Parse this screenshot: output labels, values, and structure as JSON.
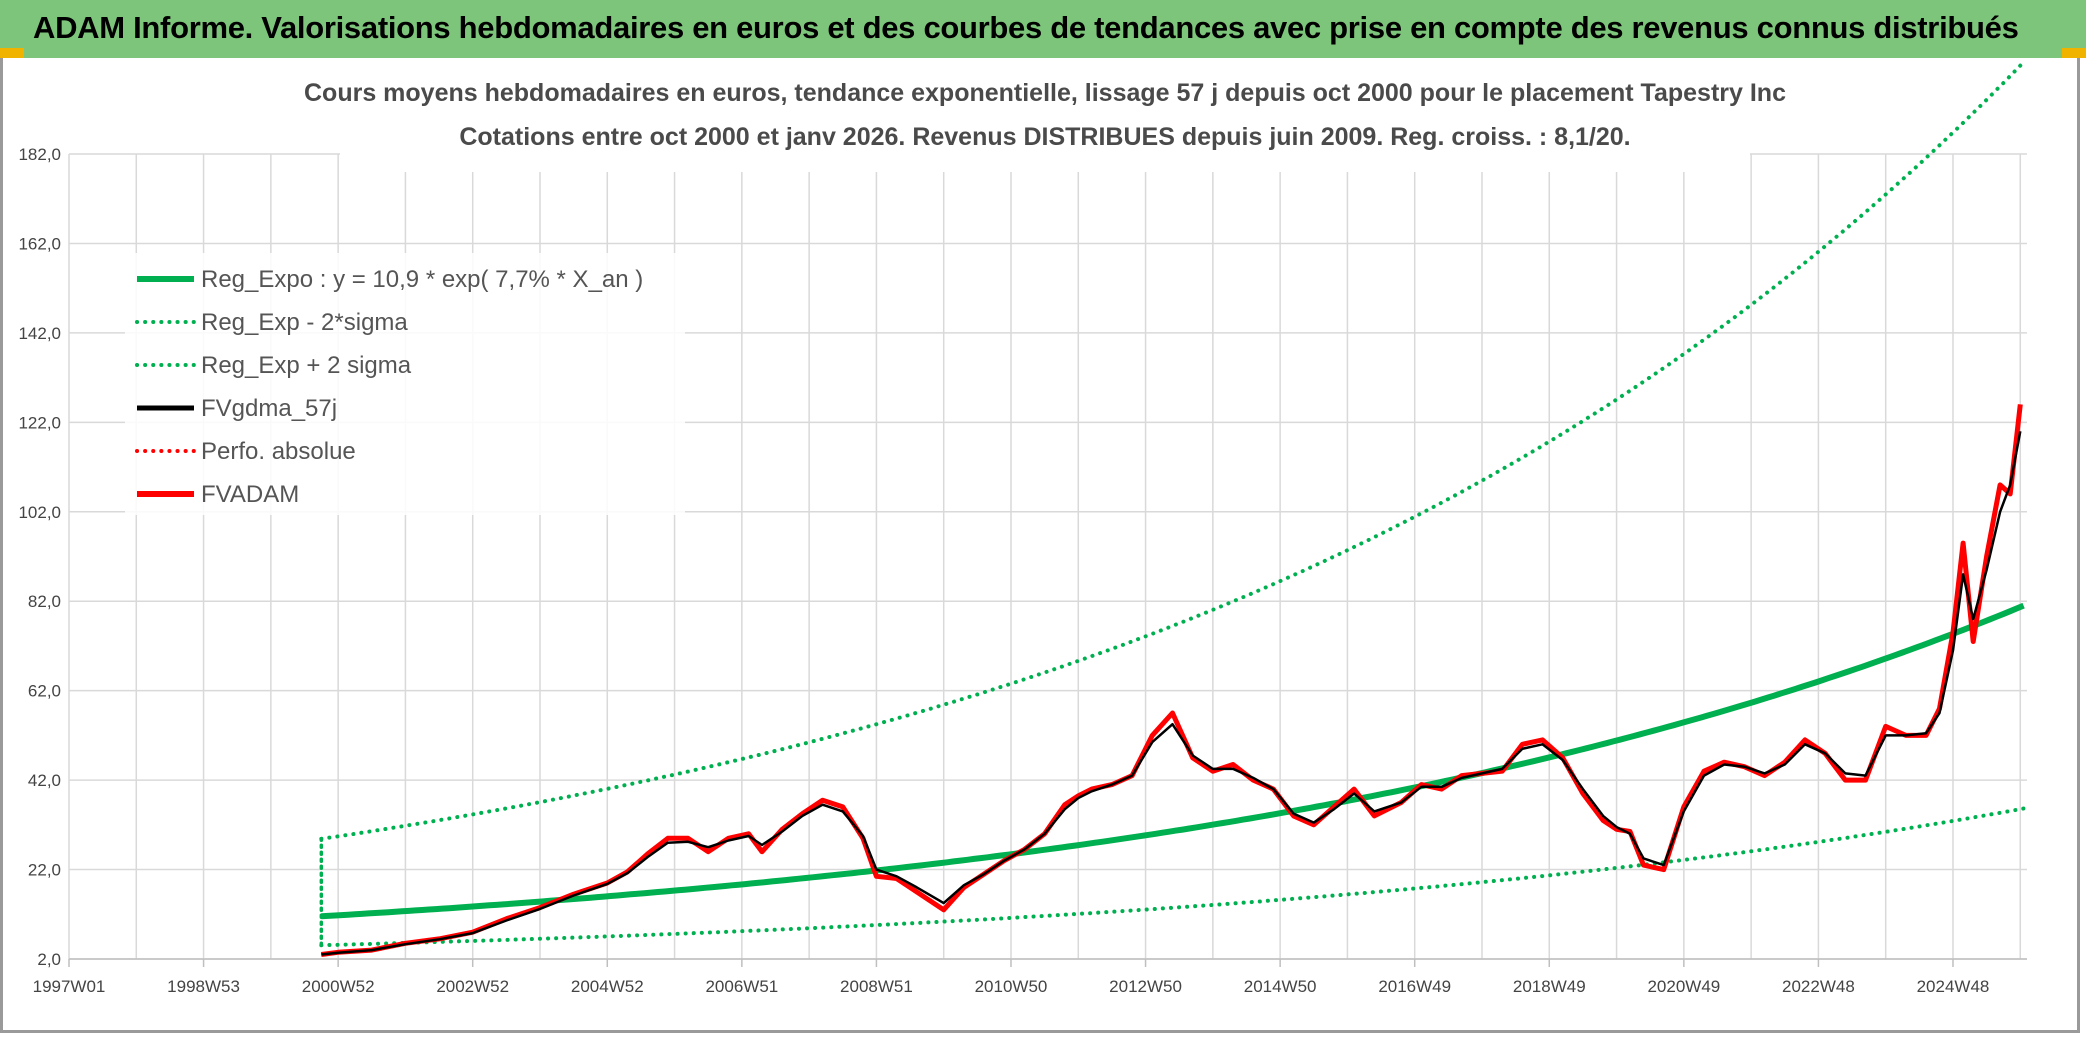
{
  "banner": {
    "title": "ADAM Informe. Valorisations hebdomadaires en euros et des courbes de tendances avec prise en compte des revenus connus distribués"
  },
  "colors": {
    "banner_bg": "#7dc57b",
    "trend_green": "#00b050",
    "red": "#ff0000",
    "black": "#000000",
    "grid": "#d9d9d9"
  },
  "chart_data": {
    "type": "line",
    "title": "Cours moyens hebdomadaires en euros, tendance exponentielle, lissage 57 j depuis oct 2000 pour le placement Tapestry Inc",
    "subtitle": "Cotations entre oct 2000 et janv 2026. Revenus DISTRIBUES depuis juin 2009. Reg. croiss. : 8,1/20.",
    "xlabel": "",
    "ylabel": "",
    "ylim": [
      2.0,
      182.0
    ],
    "xlim": [
      1997.0,
      2026.1
    ],
    "y_ticks": [
      "2,0",
      "22,0",
      "42,0",
      "62,0",
      "82,0",
      "102,0",
      "122,0",
      "142,0",
      "162,0",
      "182,0"
    ],
    "x_ticks": [
      "1997W01",
      "1998W53",
      "2000W52",
      "2002W52",
      "2004W52",
      "2006W51",
      "2008W51",
      "2010W50",
      "2012W50",
      "2014W50",
      "2016W49",
      "2018W49",
      "2020W49",
      "2022W48",
      "2024W48"
    ],
    "x_tick_years": [
      1997.0,
      1999.0,
      2001.0,
      2003.0,
      2005.0,
      2007.0,
      2009.0,
      2011.0,
      2013.0,
      2015.0,
      2017.0,
      2019.0,
      2021.0,
      2023.0,
      2025.0
    ],
    "x_minor_years": [
      1998.0,
      2000.0,
      2002.0,
      2004.0,
      2006.0,
      2008.0,
      2010.0,
      2012.0,
      2014.0,
      2016.0,
      2018.0,
      2020.0,
      2022.0,
      2024.0,
      2026.0
    ],
    "legend": [
      {
        "label": "Reg_Expo : y = 10,9 * exp( 7,7% *  X_an )",
        "color": "#00b050",
        "style": "solid-thick"
      },
      {
        "label": "Reg_Exp - 2*sigma",
        "color": "#00b050",
        "style": "dotted"
      },
      {
        "label": "Reg_Exp + 2 sigma",
        "color": "#00b050",
        "style": "dotted"
      },
      {
        "label": "FVgdma_57j",
        "color": "#000000",
        "style": "solid"
      },
      {
        "label": "Perfo. absolue",
        "color": "#ff0000",
        "style": "dotted"
      },
      {
        "label": "FVADAM",
        "color": "#ff0000",
        "style": "solid-thick"
      }
    ],
    "regression": {
      "a": 10.9,
      "b": 0.077,
      "start_year": 2000.75,
      "end_year": 2026.05,
      "minus_factor": 0.44,
      "plus_factor": 2.5
    },
    "series": [
      {
        "name": "FVADAM",
        "x": [
          2000.75,
          2001.0,
          2001.5,
          2002.0,
          2002.5,
          2003.0,
          2003.5,
          2004.0,
          2004.5,
          2005.0,
          2005.3,
          2005.6,
          2005.9,
          2006.2,
          2006.5,
          2006.8,
          2007.1,
          2007.3,
          2007.6,
          2007.9,
          2008.2,
          2008.5,
          2008.8,
          2009.0,
          2009.3,
          2009.6,
          2010.0,
          2010.3,
          2010.6,
          2010.9,
          2011.2,
          2011.5,
          2011.8,
          2012.0,
          2012.2,
          2012.5,
          2012.8,
          2013.1,
          2013.4,
          2013.7,
          2014.0,
          2014.3,
          2014.6,
          2014.9,
          2015.2,
          2015.5,
          2015.8,
          2016.1,
          2016.4,
          2016.8,
          2017.1,
          2017.4,
          2017.7,
          2018.0,
          2018.3,
          2018.6,
          2018.9,
          2019.2,
          2019.5,
          2019.8,
          2020.0,
          2020.2,
          2020.4,
          2020.7,
          2021.0,
          2021.3,
          2021.6,
          2021.9,
          2022.2,
          2022.5,
          2022.8,
          2023.1,
          2023.4,
          2023.7,
          2024.0,
          2024.3,
          2024.6,
          2024.8,
          2025.0,
          2025.15,
          2025.3,
          2025.5,
          2025.7,
          2025.85,
          2026.0
        ],
        "values": [
          3.0,
          3.5,
          4.0,
          5.5,
          6.5,
          8.0,
          11.0,
          13.5,
          16.5,
          19.0,
          21.5,
          25.5,
          29.0,
          29.0,
          26.0,
          29.0,
          30.0,
          26.0,
          31.0,
          34.5,
          37.5,
          36.0,
          29.0,
          20.5,
          20.0,
          17.0,
          13.0,
          18.0,
          21.0,
          24.0,
          26.5,
          30.0,
          36.5,
          38.5,
          40.0,
          41.0,
          43.0,
          52.0,
          57.0,
          47.0,
          44.0,
          45.5,
          42.0,
          40.0,
          34.0,
          32.0,
          36.0,
          40.0,
          34.0,
          37.0,
          41.0,
          40.0,
          43.0,
          43.5,
          44.0,
          50.0,
          51.0,
          47.0,
          39.0,
          33.0,
          31.0,
          30.5,
          23.0,
          22.0,
          36.0,
          44.0,
          46.0,
          45.0,
          43.0,
          46.0,
          51.0,
          48.0,
          42.0,
          42.0,
          54.0,
          52.0,
          52.0,
          58.0,
          75.0,
          95.0,
          73.0,
          92.0,
          108.0,
          106.0,
          126.0
        ]
      },
      {
        "name": "FVgdma_57j",
        "x": [
          2000.75,
          2001.0,
          2001.5,
          2002.0,
          2002.5,
          2003.0,
          2003.5,
          2004.0,
          2004.5,
          2005.0,
          2005.3,
          2005.6,
          2005.9,
          2006.2,
          2006.5,
          2006.8,
          2007.1,
          2007.3,
          2007.6,
          2007.9,
          2008.2,
          2008.5,
          2008.8,
          2009.0,
          2009.3,
          2009.6,
          2010.0,
          2010.3,
          2010.6,
          2010.9,
          2011.2,
          2011.5,
          2011.8,
          2012.0,
          2012.2,
          2012.5,
          2012.8,
          2013.1,
          2013.4,
          2013.7,
          2014.0,
          2014.3,
          2014.6,
          2014.9,
          2015.2,
          2015.5,
          2015.8,
          2016.1,
          2016.4,
          2016.8,
          2017.1,
          2017.4,
          2017.7,
          2018.0,
          2018.3,
          2018.6,
          2018.9,
          2019.2,
          2019.5,
          2019.8,
          2020.0,
          2020.2,
          2020.4,
          2020.7,
          2021.0,
          2021.3,
          2021.6,
          2021.9,
          2022.2,
          2022.5,
          2022.8,
          2023.1,
          2023.4,
          2023.7,
          2024.0,
          2024.3,
          2024.6,
          2024.8,
          2025.0,
          2025.15,
          2025.3,
          2025.5,
          2025.7,
          2025.85,
          2026.0
        ],
        "values": [
          3.0,
          3.4,
          4.0,
          5.3,
          6.4,
          7.8,
          10.6,
          13.2,
          16.2,
          18.8,
          21.2,
          24.8,
          28.0,
          28.2,
          27.0,
          28.5,
          29.5,
          27.5,
          30.5,
          34.0,
          36.5,
          35.0,
          29.5,
          22.0,
          20.5,
          18.0,
          14.5,
          18.5,
          21.0,
          24.0,
          26.5,
          30.0,
          35.5,
          38.0,
          39.5,
          41.0,
          43.0,
          50.5,
          54.5,
          47.5,
          44.5,
          44.5,
          42.5,
          40.0,
          34.5,
          32.5,
          35.5,
          39.0,
          35.0,
          37.0,
          40.5,
          40.5,
          42.5,
          43.5,
          44.5,
          49.0,
          50.0,
          46.5,
          40.0,
          34.0,
          31.5,
          30.0,
          24.5,
          23.0,
          35.0,
          43.0,
          45.5,
          45.0,
          43.5,
          45.5,
          50.0,
          48.0,
          43.5,
          43.0,
          52.0,
          52.0,
          52.5,
          57.0,
          71.0,
          88.0,
          78.0,
          89.0,
          102.0,
          108.0,
          120.0
        ]
      }
    ]
  }
}
